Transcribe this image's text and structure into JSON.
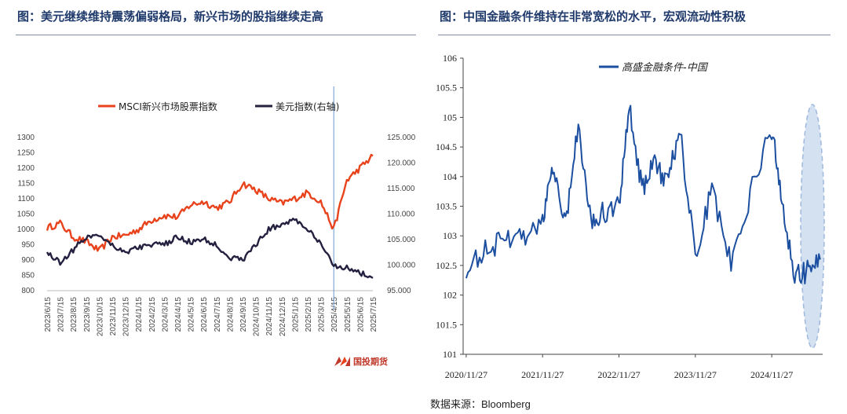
{
  "left_panel": {
    "title": "图：美元继续维持震荡偏弱格局，新兴市场的股指继续走高",
    "logo_text": "国投期货"
  },
  "right_panel": {
    "title": "图：中国金融条件维持在非常宽松的水平，宏观流动性积极",
    "source": "数据来源：Bloomberg"
  },
  "colors": {
    "msci": "#e8431c",
    "usd": "#232040",
    "fci": "#1c4fa0",
    "title": "#1f3a6b",
    "marker": "#6699cc",
    "ellipse": "#b8cde8"
  },
  "chart_data": [
    {
      "type": "line",
      "title": "",
      "legend_placement": "top",
      "x": [
        "2023/6/15",
        "2023/7/15",
        "2023/8/15",
        "2023/9/15",
        "2023/10/15",
        "2023/11/15",
        "2023/12/15",
        "2024/1/15",
        "2024/2/15",
        "2024/3/15",
        "2024/4/15",
        "2024/5/15",
        "2024/6/15",
        "2024/7/15",
        "2024/8/15",
        "2024/9/15",
        "2024/10/15",
        "2024/11/15",
        "2024/12/15",
        "2025/1/15",
        "2025/2/15",
        "2025/3/15",
        "2025/4/15",
        "2025/5/15",
        "2025/6/15",
        "2025/7/15"
      ],
      "y_left": {
        "ylim": [
          800,
          1300
        ],
        "ticks": [
          800,
          850,
          900,
          950,
          1000,
          1050,
          1100,
          1150,
          1200,
          1250,
          1300
        ]
      },
      "y_right": {
        "ylim": [
          95,
          125
        ],
        "ticks": [
          "95.000",
          "100.000",
          "105.000",
          "110.000",
          "115.000",
          "120.000",
          "125.000"
        ]
      },
      "vertical_marker": "2025/4/15",
      "series": [
        {
          "name": "MSCI新兴市场股票指数",
          "axis": "left",
          "values": [
            1005,
            1020,
            975,
            960,
            930,
            975,
            980,
            1000,
            1030,
            1045,
            1040,
            1080,
            1090,
            1070,
            1090,
            1150,
            1130,
            1100,
            1085,
            1100,
            1120,
            1090,
            1000,
            1160,
            1200,
            1240
          ]
        },
        {
          "name": "美元指数(右轴)",
          "axis": "right",
          "values": [
            102.5,
            100.5,
            103.0,
            105.5,
            106.0,
            104.0,
            102.5,
            103.5,
            104.0,
            104.0,
            105.5,
            104.5,
            105.0,
            104.0,
            101.5,
            101.0,
            104.0,
            107.0,
            108.0,
            109.0,
            107.0,
            104.0,
            100.0,
            99.5,
            98.5,
            97.5
          ]
        }
      ]
    },
    {
      "type": "line",
      "title": "",
      "legend_placement": "top",
      "x_ticks": [
        "2020/11/27",
        "2021/11/27",
        "2022/11/27",
        "2023/11/27",
        "2024/11/27"
      ],
      "ylim": [
        101,
        106
      ],
      "y_ticks": [
        "101",
        "101.5",
        "102",
        "102.5",
        "103",
        "103.5",
        "104",
        "104.5",
        "105",
        "105.5",
        "106"
      ],
      "highlight": "dashed ellipse over latest data",
      "series": [
        {
          "name": "高盛金融条件-中国",
          "x": [
            "2020/11/27",
            "2021/2/27",
            "2021/5/27",
            "2021/8/27",
            "2021/11/27",
            "2022/1/15",
            "2022/3/15",
            "2022/5/15",
            "2022/7/15",
            "2022/9/15",
            "2022/11/27",
            "2023/1/15",
            "2023/3/15",
            "2023/5/15",
            "2023/7/15",
            "2023/9/15",
            "2023/11/27",
            "2024/2/15",
            "2024/5/15",
            "2024/8/15",
            "2024/11/27",
            "2025/1/15",
            "2025/3/15",
            "2025/5/15",
            "2025/7/15"
          ],
          "values": [
            102.4,
            102.8,
            102.9,
            103.0,
            103.2,
            104.2,
            103.2,
            104.9,
            103.3,
            103.4,
            103.5,
            105.2,
            103.8,
            104.2,
            103.9,
            104.8,
            102.6,
            103.8,
            102.5,
            103.7,
            104.8,
            103.6,
            102.3,
            102.4,
            102.6
          ]
        }
      ]
    }
  ]
}
